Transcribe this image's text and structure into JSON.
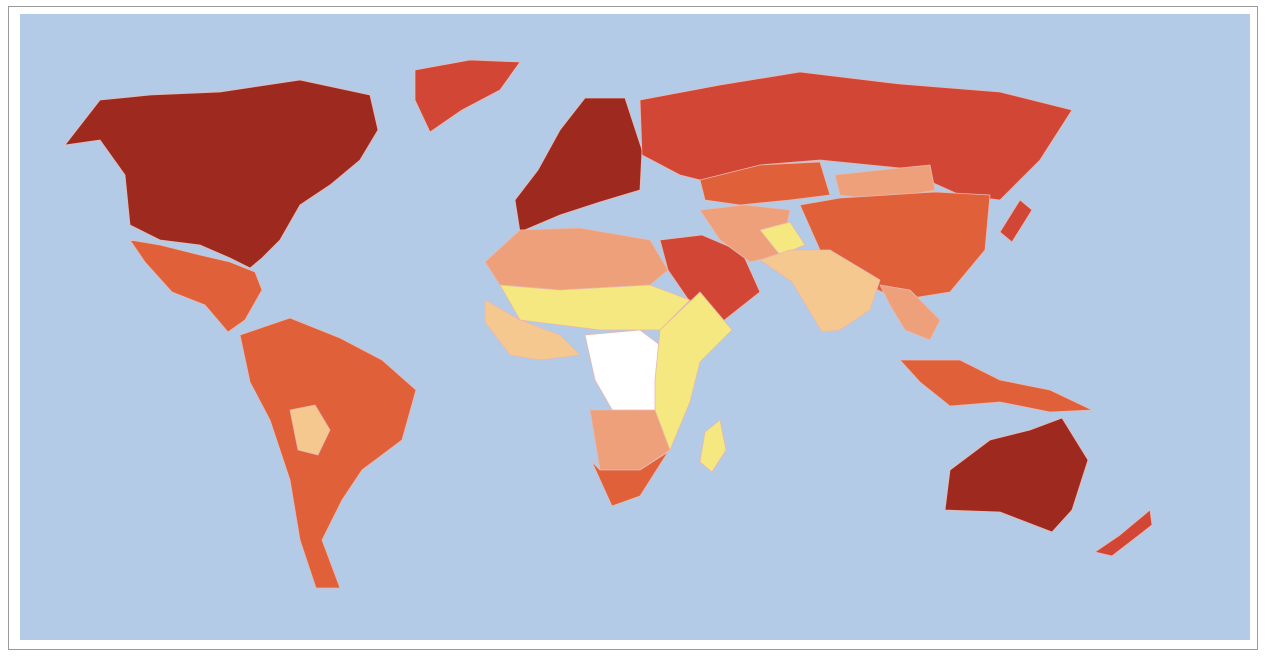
{
  "map": {
    "type": "choropleth-world",
    "ocean_color": "#b3cbe6",
    "scale_colors": {
      "none": "#ffffff",
      "level1": "#f5e880",
      "level2": "#f5c890",
      "level3": "#eea07a",
      "level4": "#e0603a",
      "level5": "#d24636",
      "level6": "#9e2a1f"
    },
    "regions": [
      {
        "name": "north-america",
        "level": "level6"
      },
      {
        "name": "greenland",
        "level": "level5"
      },
      {
        "name": "mexico-central-america",
        "level": "level4"
      },
      {
        "name": "south-america",
        "level": "level4"
      },
      {
        "name": "bolivia",
        "level": "level2"
      },
      {
        "name": "europe",
        "level": "level6"
      },
      {
        "name": "russia",
        "level": "level5"
      },
      {
        "name": "central-asia",
        "level": "level4"
      },
      {
        "name": "mongolia",
        "level": "level3"
      },
      {
        "name": "china",
        "level": "level4"
      },
      {
        "name": "japan",
        "level": "level5"
      },
      {
        "name": "middle-east",
        "level": "level5"
      },
      {
        "name": "iran-pakistan",
        "level": "level3"
      },
      {
        "name": "afghanistan",
        "level": "level1"
      },
      {
        "name": "india",
        "level": "level2"
      },
      {
        "name": "southeast-asia",
        "level": "level3"
      },
      {
        "name": "indonesia",
        "level": "level4"
      },
      {
        "name": "north-africa",
        "level": "level3"
      },
      {
        "name": "sahel",
        "level": "level1"
      },
      {
        "name": "west-africa",
        "level": "level2"
      },
      {
        "name": "central-africa",
        "level": "none"
      },
      {
        "name": "east-africa",
        "level": "level1"
      },
      {
        "name": "southern-africa",
        "level": "level3"
      },
      {
        "name": "south-africa",
        "level": "level4"
      },
      {
        "name": "madagascar",
        "level": "level1"
      },
      {
        "name": "australia",
        "level": "level6"
      },
      {
        "name": "new-zealand",
        "level": "level5"
      }
    ]
  }
}
